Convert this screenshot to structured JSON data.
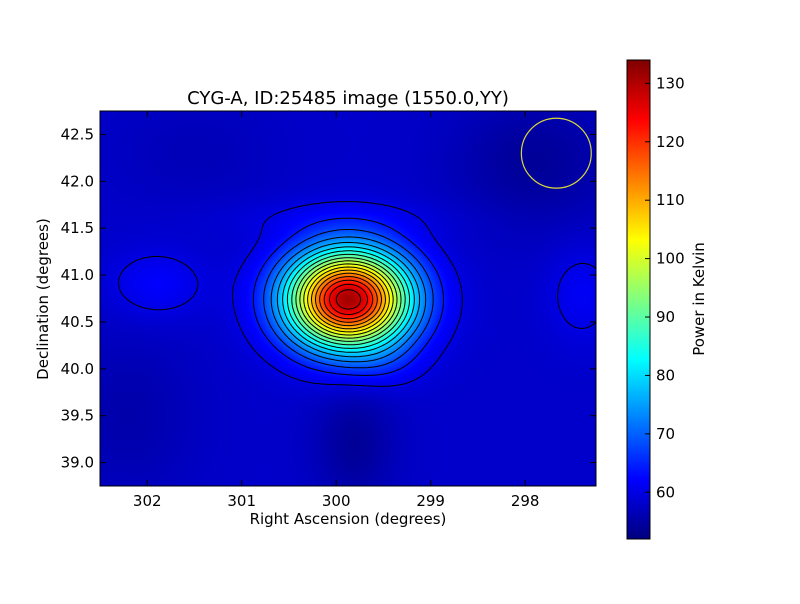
{
  "chart_data": [
    {
      "type": "heatmap",
      "title": "CYG-A, ID:25485 image (1550.0,YY)",
      "xlabel": "Right Ascension (degrees)",
      "ylabel": "Declination (degrees)",
      "xlim": [
        302.5,
        297.25
      ],
      "ylim": [
        38.75,
        42.75
      ],
      "x_ticks": [
        302,
        301,
        300,
        299,
        298
      ],
      "y_ticks": [
        39.0,
        39.5,
        40.0,
        40.5,
        41.0,
        41.5,
        42.0,
        42.5
      ],
      "x_tick_labels": [
        "302",
        "301",
        "300",
        "299",
        "298"
      ],
      "y_tick_labels": [
        "39.0",
        "39.5",
        "40.0",
        "40.5",
        "41.0",
        "41.5",
        "42.0",
        "42.5"
      ],
      "colormap": "jet",
      "background_level": 58,
      "peak": {
        "ra": 299.87,
        "dec": 40.74,
        "value": 133
      },
      "source_sigma_deg": {
        "ra": 0.45,
        "dec": 0.36
      },
      "contour_levels": [
        60,
        64,
        68,
        72,
        76,
        80,
        84,
        88,
        92,
        96,
        100,
        104,
        108,
        112,
        116,
        120,
        124,
        128,
        132
      ],
      "beam_circle": {
        "ra": 297.67,
        "dec": 42.3,
        "radius_deg": 0.37,
        "color": "#d8d83a"
      },
      "colorbar": {
        "label": "Power in Kelvin",
        "range": [
          52,
          134
        ],
        "ticks": [
          60,
          70,
          80,
          90,
          100,
          110,
          120,
          130
        ],
        "tick_labels": [
          "60",
          "70",
          "80",
          "90",
          "100",
          "110",
          "120",
          "130"
        ]
      }
    }
  ]
}
